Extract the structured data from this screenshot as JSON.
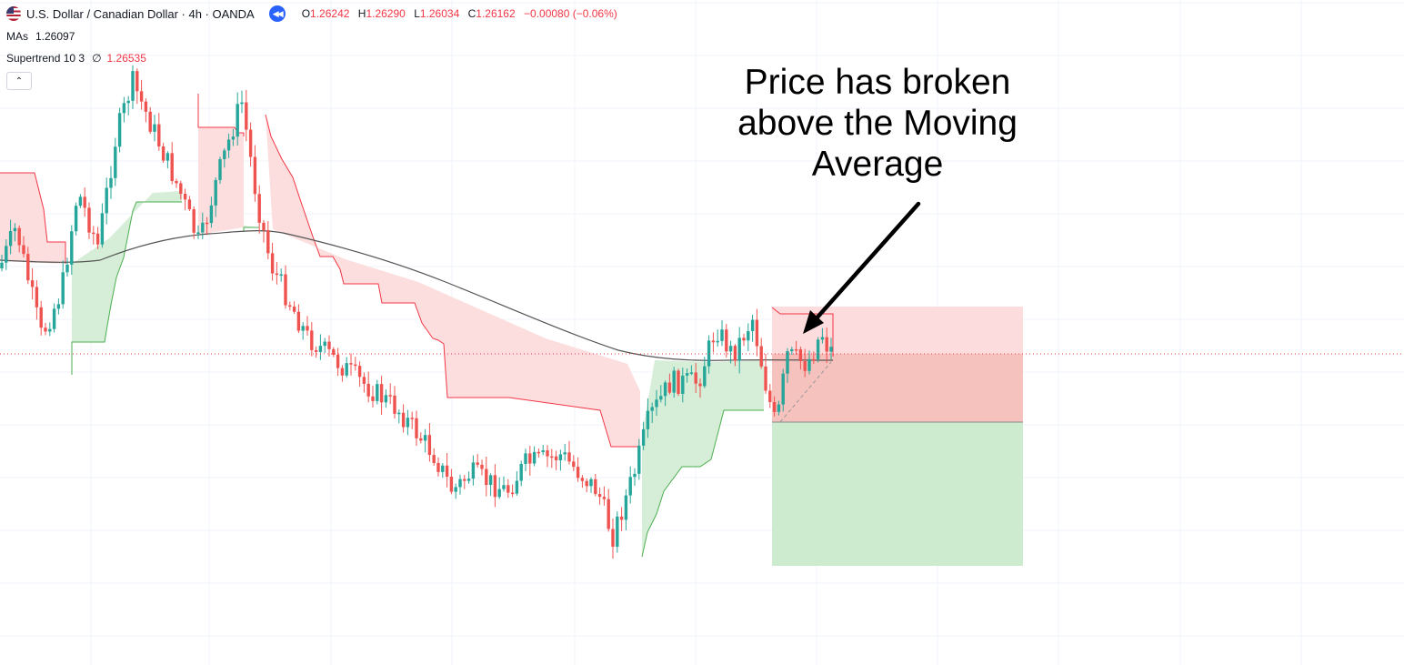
{
  "header": {
    "symbol": "U.S. Dollar / Canadian Dollar · 4h · OANDA",
    "ohlc": {
      "o_label": "O",
      "o": "1.26242",
      "h_label": "H",
      "h": "1.26290",
      "l_label": "L",
      "l": "1.26034",
      "c_label": "C",
      "c": "1.26162",
      "change": "−0.00080 (−0.06%)"
    }
  },
  "indicators": {
    "ma_label": "MAs",
    "ma_value": "1.26097",
    "supertrend_label": "Supertrend 10 3",
    "supertrend_sep": "∅",
    "supertrend_value": "1.26535"
  },
  "annotation": {
    "line1": "Price has broken",
    "line2": "above the Moving",
    "line3": "Average"
  },
  "colors": {
    "up": "#26a69a",
    "down": "#ef5350",
    "supertrend_up_line": "#4caf50",
    "supertrend_down_line": "#f23645",
    "supertrend_up_fill": "#d6eed8",
    "supertrend_down_fill": "#fcdede",
    "ma_line": "#555555",
    "grid": "#f0f3fa",
    "stop_zone": "#f4b7b3",
    "target_zone": "#cdeccf",
    "price_line": "#f23645"
  },
  "icons": [
    "flag-icon",
    "replay-icon",
    "chevron-up-icon",
    "arrow-annotation-icon"
  ],
  "chart_data": {
    "type": "candlestick",
    "indicators": [
      "Moving Average",
      "Supertrend 10 3"
    ],
    "last_close": 1.26162,
    "moving_average_last": 1.26097,
    "supertrend_last": 1.26535,
    "position_tool": {
      "entry": 1.26162,
      "stop_zone": "above entry",
      "target_zone": "below entry"
    },
    "grid": true,
    "legend": "top-left"
  }
}
